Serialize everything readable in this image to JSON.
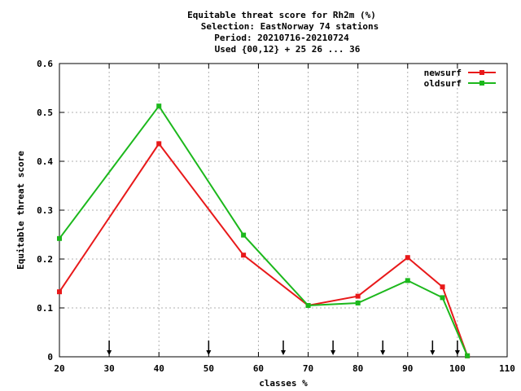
{
  "chart_data": {
    "type": "line",
    "title_lines": [
      "Equitable threat score  for Rh2m (%)",
      "Selection: EastNorway     74 stations",
      "Period: 20210716-20210724",
      "Used {00,12} + 25 26 ... 36"
    ],
    "xlabel": "classes %",
    "ylabel": "Equitable threat score",
    "xlim": [
      20,
      110
    ],
    "ylim": [
      0,
      0.6
    ],
    "xticks": [
      "20",
      "30",
      "40",
      "50",
      "60",
      "70",
      "80",
      "90",
      "100",
      "110"
    ],
    "yticks": [
      "0",
      "0.1",
      "0.2",
      "0.3",
      "0.4",
      "0.5",
      "0.6"
    ],
    "grid": true,
    "legend_position": "top-right",
    "series": [
      {
        "name": "newsurf",
        "color": "#e8191a",
        "x": [
          20,
          40,
          57,
          70,
          80,
          90,
          97,
          102
        ],
        "y": [
          0.133,
          0.436,
          0.208,
          0.105,
          0.124,
          0.203,
          0.143,
          0.002
        ]
      },
      {
        "name": "oldsurf",
        "color": "#1cb81c",
        "x": [
          20,
          40,
          57,
          70,
          80,
          90,
          97,
          102
        ],
        "y": [
          0.242,
          0.513,
          0.249,
          0.105,
          0.11,
          0.156,
          0.121,
          0.002
        ]
      }
    ],
    "threshold_markers_x": [
      30,
      50,
      65,
      75,
      85,
      95,
      100
    ]
  }
}
